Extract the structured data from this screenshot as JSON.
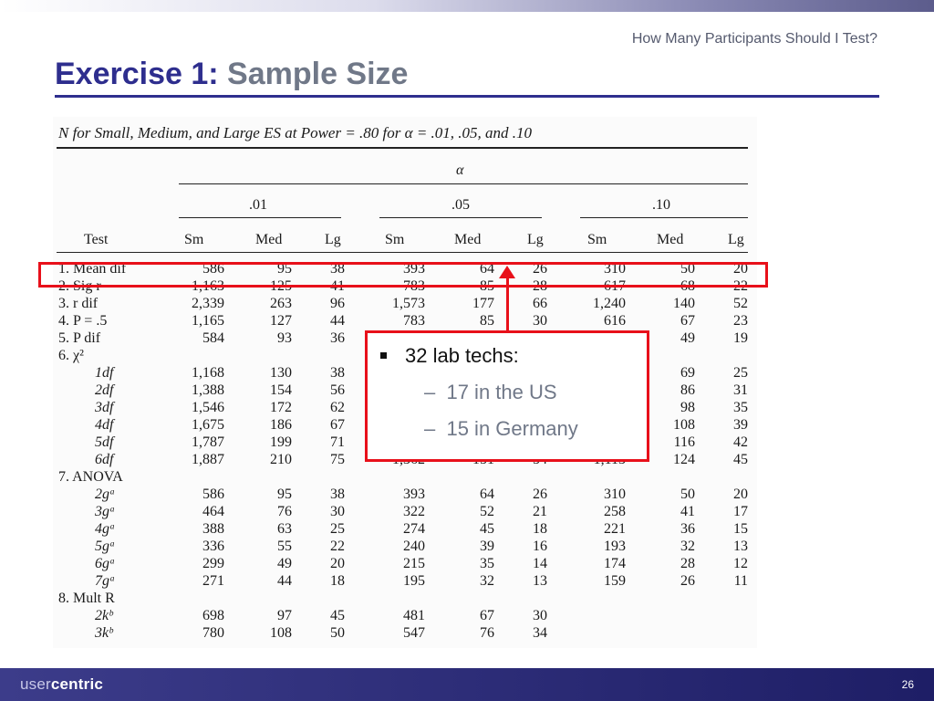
{
  "header": {
    "subtitle": "How Many Participants Should I Test?",
    "title_part1": "Exercise 1:",
    "title_part2": "Sample Size"
  },
  "table": {
    "caption": "N for Small, Medium, and Large ES at Power = .80 for α = .01, .05, and .10",
    "alpha_label": "α",
    "groups": [
      ".01",
      ".05",
      ".10"
    ],
    "test_header": "Test",
    "col_headers": [
      "Sm",
      "Med",
      "Lg",
      "Sm",
      "Med",
      "Lg",
      "Sm",
      "Med",
      "Lg"
    ],
    "rows": [
      {
        "label": "1.  Mean dif",
        "values": [
          "586",
          "95",
          "38",
          "393",
          "64",
          "26",
          "310",
          "50",
          "20"
        ]
      },
      {
        "label": "2.  Sig r",
        "values": [
          "1,163",
          "125",
          "41",
          "783",
          "85",
          "28",
          "617",
          "68",
          "22"
        ]
      },
      {
        "label": "3.  r dif",
        "values": [
          "2,339",
          "263",
          "96",
          "1,573",
          "177",
          "66",
          "1,240",
          "140",
          "52"
        ]
      },
      {
        "label": "4.  P = .5",
        "values": [
          "1,165",
          "127",
          "44",
          "783",
          "85",
          "30",
          "616",
          "67",
          "23"
        ]
      },
      {
        "label": "5.  P dif",
        "values": [
          "584",
          "93",
          "36",
          "",
          "",
          "",
          "",
          "49",
          "19"
        ]
      },
      {
        "label": "6.  χ²",
        "values": [
          "",
          "",
          "",
          "",
          "",
          "",
          "",
          "",
          ""
        ]
      },
      {
        "label": "1df",
        "values": [
          "1,168",
          "130",
          "38",
          "",
          "",
          "",
          "",
          "69",
          "25"
        ]
      },
      {
        "label": "2df",
        "values": [
          "1,388",
          "154",
          "56",
          "",
          "",
          "",
          "",
          "86",
          "31"
        ]
      },
      {
        "label": "3df",
        "values": [
          "1,546",
          "172",
          "62",
          "",
          "",
          "",
          "",
          "98",
          "35"
        ]
      },
      {
        "label": "4df",
        "values": [
          "1,675",
          "186",
          "67",
          "",
          "",
          "",
          "",
          "108",
          "39"
        ]
      },
      {
        "label": "5df",
        "values": [
          "1,787",
          "199",
          "71",
          "",
          "",
          "",
          "",
          "116",
          "42"
        ]
      },
      {
        "label": "6df",
        "values": [
          "1,887",
          "210",
          "75",
          "1,362",
          "151",
          "54",
          "1,113",
          "124",
          "45"
        ]
      },
      {
        "label": "7.  ANOVA",
        "values": [
          "",
          "",
          "",
          "",
          "",
          "",
          "",
          "",
          ""
        ]
      },
      {
        "label": "2gᵃ",
        "values": [
          "586",
          "95",
          "38",
          "393",
          "64",
          "26",
          "310",
          "50",
          "20"
        ]
      },
      {
        "label": "3gᵃ",
        "values": [
          "464",
          "76",
          "30",
          "322",
          "52",
          "21",
          "258",
          "41",
          "17"
        ]
      },
      {
        "label": "4gᵃ",
        "values": [
          "388",
          "63",
          "25",
          "274",
          "45",
          "18",
          "221",
          "36",
          "15"
        ]
      },
      {
        "label": "5gᵃ",
        "values": [
          "336",
          "55",
          "22",
          "240",
          "39",
          "16",
          "193",
          "32",
          "13"
        ]
      },
      {
        "label": "6gᵃ",
        "values": [
          "299",
          "49",
          "20",
          "215",
          "35",
          "14",
          "174",
          "28",
          "12"
        ]
      },
      {
        "label": "7gᵃ",
        "values": [
          "271",
          "44",
          "18",
          "195",
          "32",
          "13",
          "159",
          "26",
          "11"
        ]
      },
      {
        "label": "8.  Mult R",
        "values": [
          "",
          "",
          "",
          "",
          "",
          "",
          "",
          "",
          ""
        ]
      },
      {
        "label": "2kᵇ",
        "values": [
          "698",
          "97",
          "45",
          "481",
          "67",
          "30",
          "",
          "",
          ""
        ]
      },
      {
        "label": "3kᵇ",
        "values": [
          "780",
          "108",
          "50",
          "547",
          "76",
          "34",
          "",
          "",
          ""
        ]
      }
    ]
  },
  "callout": {
    "bullet": "32 lab techs:",
    "sub_items": [
      "17 in the US",
      "15 in Germany"
    ]
  },
  "footer": {
    "logo_light": "user",
    "logo_bold": "centric",
    "page_number": "26"
  },
  "colors": {
    "title_blue": "#2e2e8e",
    "title_gray": "#707888",
    "highlight_red": "#e8101a",
    "footer_navy": "#2a2a78"
  }
}
